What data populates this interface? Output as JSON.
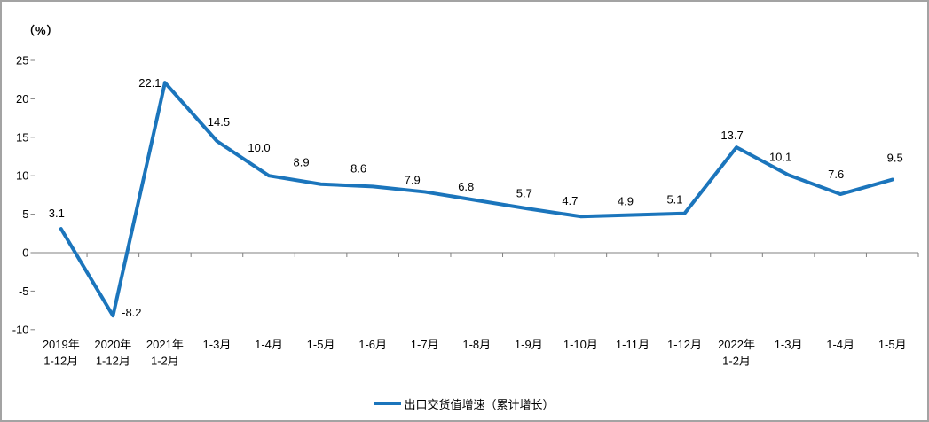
{
  "chart_data": {
    "type": "line",
    "title": "",
    "unit_label": "（%）",
    "legend": "出口交货值增速（累计增长）",
    "legend_position": "bottom-center",
    "categories": [
      "2019年\n1-12月",
      "2020年\n1-12月",
      "2021年\n1-2月",
      "1-3月",
      "1-4月",
      "1-5月",
      "1-6月",
      "1-7月",
      "1-8月",
      "1-9月",
      "1-10月",
      "1-11月",
      "1-12月",
      "2022年\n1-2月",
      "1-3月",
      "1-4月",
      "1-5月"
    ],
    "series": [
      {
        "name": "出口交货值增速（累计增长）",
        "values": [
          3.1,
          -8.2,
          22.1,
          14.5,
          10.0,
          8.9,
          8.6,
          7.9,
          6.8,
          5.7,
          4.7,
          4.9,
          5.1,
          13.7,
          10.1,
          7.6,
          9.5
        ],
        "value_labels": [
          "3.1",
          "-8.2",
          "22.1",
          "14.5",
          "10.0",
          "8.9",
          "8.6",
          "7.9",
          "6.8",
          "5.7",
          "4.7",
          "4.9",
          "5.1",
          "13.7",
          "10.1",
          "7.6",
          "9.5"
        ]
      }
    ],
    "xlabel": "",
    "ylabel": "（%）",
    "y_ticks": [
      25,
      20,
      15,
      10,
      5,
      0,
      -5,
      -10
    ],
    "ylim": [
      -10,
      25
    ],
    "grid": false,
    "series_color": "#1b75bc",
    "axis_color": "#808080",
    "text_color": "#000000"
  }
}
